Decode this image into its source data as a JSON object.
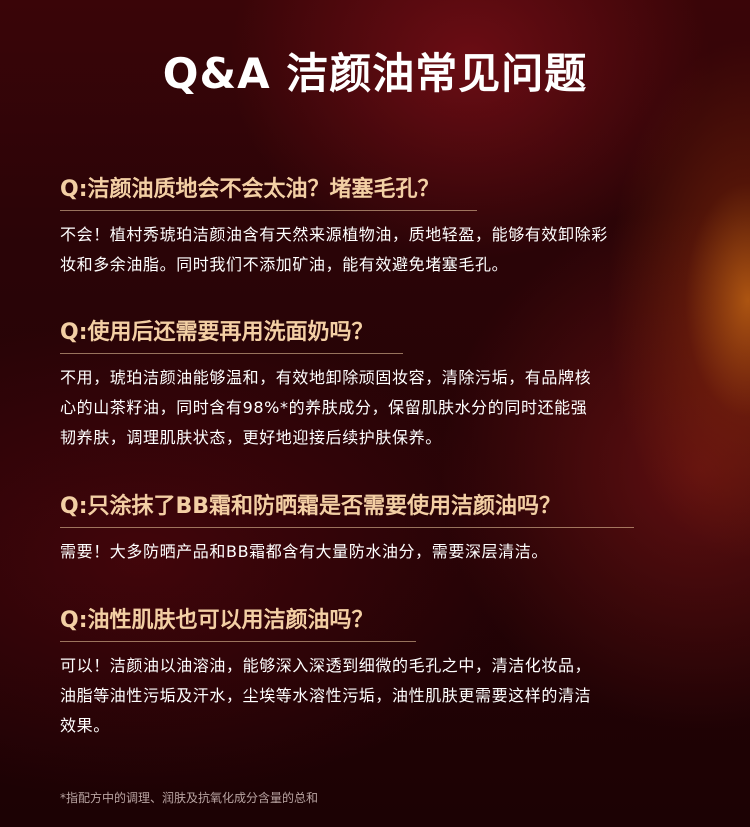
{
  "header": {
    "title": "Q&A 洁颜油常见问题"
  },
  "faq": [
    {
      "question": "Q:洁颜油质地会不会太油？堵塞毛孔？",
      "answer_lines": [
        "不会！植村秀琥珀洁颜油含有天然来源植物油，质地轻盈，能够有效卸除彩",
        "妆和多余油脂。同时我们不添加矿油，能有效避免堵塞毛孔。"
      ]
    },
    {
      "question": "Q:使用后还需要再用洗面奶吗？",
      "answer_lines": [
        "不用，琥珀洁颜油能够温和，有效地卸除顽固妆容，清除污垢，有品牌核",
        "心的山茶籽油，同时含有98%*的养肤成分，保留肌肤水分的同时还能强",
        "韧养肤，调理肌肤状态，更好地迎接后续护肤保养。"
      ]
    },
    {
      "question": "Q:只涂抹了BB霜和防晒霜是否需要使用洁颜油吗？",
      "answer_lines": [
        "需要！大多防晒产品和BB霜都含有大量防水油分，需要深层清洁。"
      ]
    },
    {
      "question": "Q:油性肌肤也可以用洁颜油吗？",
      "answer_lines": [
        "可以！洁颜油以油溶油，能够深入深透到细微的毛孔之中，清洁化妆品，",
        "油脂等油性污垢及汗水，尘埃等水溶性污垢，油性肌肤更需要这样的清洁",
        "效果。"
      ]
    }
  ],
  "footnote": "*指配方中的调理、润肤及抗氧化成分含量的总和"
}
